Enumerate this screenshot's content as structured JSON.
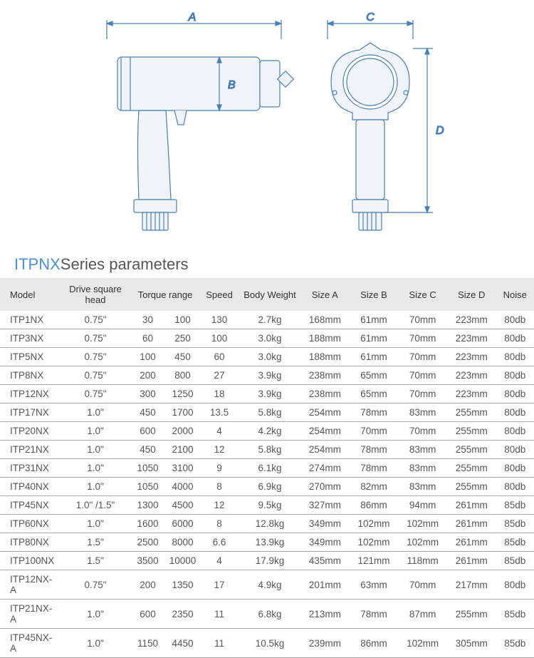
{
  "diagram": {
    "labels": {
      "A": "A",
      "B": "B",
      "C": "C",
      "D": "D"
    },
    "stroke_color": "#4a7fb5",
    "fill_color": "#e8eef5"
  },
  "title": {
    "prefix": "ITPNX",
    "suffix": "Series parameters"
  },
  "table": {
    "columns": [
      "Model",
      "Drive square head",
      "Torque range",
      "Speed",
      "Body Weight",
      "Size A",
      "Size B",
      "Size C",
      "Size D",
      "Noise"
    ],
    "rows": [
      {
        "model": "ITP1NX",
        "drive": "0.75\"",
        "tmin": "30",
        "tmax": "100",
        "speed": "130",
        "weight": "2.7kg",
        "a": "168mm",
        "b": "61mm",
        "c": "70mm",
        "d": "223mm",
        "noise": "80db"
      },
      {
        "model": "ITP3NX",
        "drive": "0.75\"",
        "tmin": "60",
        "tmax": "250",
        "speed": "100",
        "weight": "3.0kg",
        "a": "188mm",
        "b": "61mm",
        "c": "70mm",
        "d": "223mm",
        "noise": "80db"
      },
      {
        "model": "ITP5NX",
        "drive": "0.75\"",
        "tmin": "100",
        "tmax": "450",
        "speed": "60",
        "weight": "3.0kg",
        "a": "188mm",
        "b": "61mm",
        "c": "70mm",
        "d": "223mm",
        "noise": "80db"
      },
      {
        "model": "ITP8NX",
        "drive": "0.75\"",
        "tmin": "200",
        "tmax": "800",
        "speed": "27",
        "weight": "3.9kg",
        "a": "238mm",
        "b": "65mm",
        "c": "70mm",
        "d": "223mm",
        "noise": "80db"
      },
      {
        "model": "ITP12NX",
        "drive": "0.75\"",
        "tmin": "300",
        "tmax": "1250",
        "speed": "18",
        "weight": "3.9kg",
        "a": "238mm",
        "b": "65mm",
        "c": "70mm",
        "d": "223mm",
        "noise": "80db"
      },
      {
        "model": "ITP17NX",
        "drive": "1.0\"",
        "tmin": "450",
        "tmax": "1700",
        "speed": "13.5",
        "weight": "5.8kg",
        "a": "254mm",
        "b": "78mm",
        "c": "83mm",
        "d": "255mm",
        "noise": "80db"
      },
      {
        "model": "ITP20NX",
        "drive": "1.0\"",
        "tmin": "600",
        "tmax": "2000",
        "speed": "4",
        "weight": "4.2kg",
        "a": "254mm",
        "b": "70mm",
        "c": "70mm",
        "d": "255mm",
        "noise": "80db"
      },
      {
        "model": "ITP21NX",
        "drive": "1.0\"",
        "tmin": "450",
        "tmax": "2100",
        "speed": "12",
        "weight": "5.8kg",
        "a": "254mm",
        "b": "78mm",
        "c": "83mm",
        "d": "255mm",
        "noise": "80db"
      },
      {
        "model": "ITP31NX",
        "drive": "1.0\"",
        "tmin": "1050",
        "tmax": "3100",
        "speed": "9",
        "weight": "6.1kg",
        "a": "274mm",
        "b": "78mm",
        "c": "83mm",
        "d": "255mm",
        "noise": "80db"
      },
      {
        "model": "ITP40NX",
        "drive": "1.0\"",
        "tmin": "1050",
        "tmax": "4000",
        "speed": "8",
        "weight": "6.9kg",
        "a": "270mm",
        "b": "82mm",
        "c": "83mm",
        "d": "255mm",
        "noise": "80db"
      },
      {
        "model": "ITP45NX",
        "drive": "1.0\" /1.5\"",
        "tmin": "1300",
        "tmax": "4500",
        "speed": "12",
        "weight": "9.5kg",
        "a": "327mm",
        "b": "86mm",
        "c": "94mm",
        "d": "261mm",
        "noise": "85db"
      },
      {
        "model": "ITP60NX",
        "drive": "1.0\"",
        "tmin": "1600",
        "tmax": "6000",
        "speed": "8",
        "weight": "12.8kg",
        "a": "349mm",
        "b": "102mm",
        "c": "102mm",
        "d": "261mm",
        "noise": "85db"
      },
      {
        "model": "ITP80NX",
        "drive": "1.5\"",
        "tmin": "2500",
        "tmax": "8000",
        "speed": "6.6",
        "weight": "13.9kg",
        "a": "349mm",
        "b": "102mm",
        "c": "102mm",
        "d": "261mm",
        "noise": "85db"
      },
      {
        "model": "ITP100NX",
        "drive": "1.5\"",
        "tmin": "3500",
        "tmax": "10000",
        "speed": "4",
        "weight": "17.9kg",
        "a": "435mm",
        "b": "121mm",
        "c": "118mm",
        "d": "261mm",
        "noise": "85db"
      },
      {
        "model": "ITP12NX-A",
        "drive": "0.75\"",
        "tmin": "200",
        "tmax": "1350",
        "speed": "17",
        "weight": "4.9kg",
        "a": "201mm",
        "b": "63mm",
        "c": "70mm",
        "d": "217mm",
        "noise": "80db"
      },
      {
        "model": "ITP21NX-A",
        "drive": "1.0\"",
        "tmin": "600",
        "tmax": "2350",
        "speed": "11",
        "weight": "6.8kg",
        "a": "213mm",
        "b": "78mm",
        "c": "87mm",
        "d": "255mm",
        "noise": "85db"
      },
      {
        "model": "ITP45NX-A",
        "drive": "1.0\"",
        "tmin": "1150",
        "tmax": "4450",
        "speed": "11",
        "weight": "10.5kg",
        "a": "239mm",
        "b": "86mm",
        "c": "102mm",
        "d": "305mm",
        "noise": "85db"
      }
    ]
  }
}
